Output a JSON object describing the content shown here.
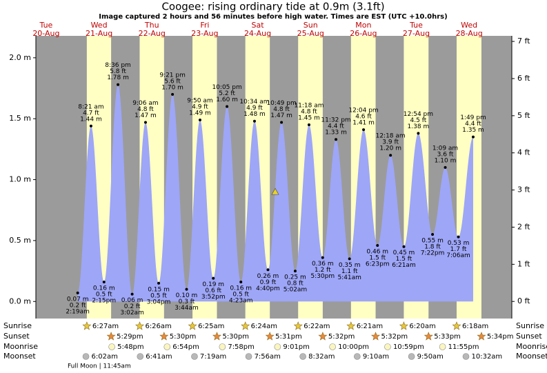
{
  "chart_data": {
    "type": "area",
    "title": "Coogee: rising ordinary tide at 0.9m (3.1ft)",
    "subtitle": "Image captured 2 hours and 56 minutes before high water. Times are EST (UTC +10.0hrs)",
    "days": {
      "weekdays": [
        "Tue",
        "Wed",
        "Thu",
        "Fri",
        "Sat",
        "Sun",
        "Mon",
        "Tue",
        "Wed"
      ],
      "dates": [
        "20-Aug",
        "21-Aug",
        "22-Aug",
        "23-Aug",
        "24-Aug",
        "25-Aug",
        "26-Aug",
        "27-Aug",
        "28-Aug"
      ]
    },
    "ylim": [
      -0.14,
      2.18
    ],
    "yticks": [
      {
        "value": 0,
        "label": "0.0 m"
      },
      {
        "value": 0.5,
        "label": "0.5 m"
      },
      {
        "value": 1,
        "label": "1.0 m"
      },
      {
        "value": 1.5,
        "label": "1.5 m"
      },
      {
        "value": 2,
        "label": "2.0 m"
      }
    ],
    "y2lim": [
      -0.46,
      7.15
    ],
    "y2ticks": [
      {
        "value": 0,
        "label": "0 ft"
      },
      {
        "value": 1,
        "label": "1 ft"
      },
      {
        "value": 2,
        "label": "2 ft"
      },
      {
        "value": 3,
        "label": "3 ft"
      },
      {
        "value": 4,
        "label": "4 ft"
      },
      {
        "value": 5,
        "label": "5 ft"
      },
      {
        "value": 6,
        "label": "6 ft"
      },
      {
        "value": 7,
        "label": "7 ft"
      }
    ],
    "tides": {
      "color": "#9ea6f7",
      "times": [
        "2:19am",
        "8:21 am",
        "2:15pm",
        "8:36 pm",
        "3:02am",
        "9:06 am",
        "3:04pm",
        "9:21 pm",
        "3:44am",
        "9:50 am",
        "3:52pm",
        "10:05 pm",
        "4:23am",
        "10:34 am",
        "4:40pm",
        "10:49 pm",
        "5:02am",
        "11:18 am",
        "5:30pm",
        "11:32 pm",
        "5:41am",
        "12:04 pm",
        "6:23pm",
        "12:18 am",
        "6:21am",
        "12:54 pm",
        "7:22pm",
        "1:09 am",
        "7:06am",
        "1:49 pm"
      ],
      "values": [
        0.07,
        1.44,
        0.16,
        1.78,
        0.06,
        1.47,
        0.15,
        1.7,
        0.1,
        1.49,
        0.19,
        1.6,
        0.16,
        1.48,
        0.26,
        1.47,
        0.25,
        1.45,
        0.36,
        1.33,
        0.35,
        1.41,
        0.46,
        1.2,
        0.45,
        1.38,
        0.55,
        1.1,
        0.53,
        1.35
      ],
      "value_labels": [
        "0.07 m",
        "1.44 m",
        "0.16 m",
        "1.78 m",
        "0.06 m",
        "1.47 m",
        "0.15 m",
        "1.70 m",
        "0.10 m",
        "1.49 m",
        "0.19 m",
        "1.60 m",
        "0.16 m",
        "1.48 m",
        "0.26 m",
        "1.47 m",
        "0.25 m",
        "1.45 m",
        "0.36 m",
        "1.33 m",
        "0.35 m",
        "1.41 m",
        "0.46 m",
        "1.20 m",
        "0.45 m",
        "1.38 m",
        "0.55 m",
        "1.10 m",
        "0.53 m",
        "1.35 m"
      ],
      "ft_labels": [
        "0.2 ft",
        "4.7 ft",
        "0.5 ft",
        "5.8 ft",
        "0.2 ft",
        "4.8 ft",
        "0.5 ft",
        "5.6 ft",
        "0.3 ft",
        "4.9 ft",
        "0.6 ft",
        "5.2 ft",
        "0.5 ft",
        "4.9 ft",
        "0.9 ft",
        "4.8 ft",
        "0.8 ft",
        "4.8 ft",
        "1.2 ft",
        "4.4 ft",
        "1.1 ft",
        "4.6 ft",
        "1.5 ft",
        "3.9 ft",
        "1.5 ft",
        "4.5 ft",
        "1.8 ft",
        "3.6 ft",
        "1.7 ft",
        "4.4 ft"
      ]
    },
    "current": {
      "value": 0.9,
      "color": "#e8d22a"
    },
    "day_color": "#ffffc4",
    "night_color": "#9b9b9b",
    "astro": [
      {
        "name": "Sunrise",
        "color": "#e6c83a",
        "times": [
          "6:27am",
          "6:26am",
          "6:25am",
          "6:24am",
          "6:22am",
          "6:21am",
          "6:20am",
          "6:18am"
        ]
      },
      {
        "name": "Sunset",
        "color": "#e88a3a",
        "times": [
          "5:29pm",
          "5:30pm",
          "5:30pm",
          "5:31pm",
          "5:32pm",
          "5:32pm",
          "5:33pm",
          "5:34pm"
        ]
      },
      {
        "name": "Moonrise",
        "color": "#fbf6bf",
        "times": [
          "5:48pm",
          "6:54pm",
          "7:58pm",
          "9:01pm",
          "10:00pm",
          "10:59pm",
          "11:55pm"
        ]
      },
      {
        "name": "Moonset",
        "color": "#b8b8b8",
        "times": [
          "6:02am",
          "6:41am",
          "7:19am",
          "7:56am",
          "8:32am",
          "9:10am",
          "9:50am",
          "10:32am"
        ]
      }
    ],
    "full_moon": "Full Moon | 11:45am"
  }
}
